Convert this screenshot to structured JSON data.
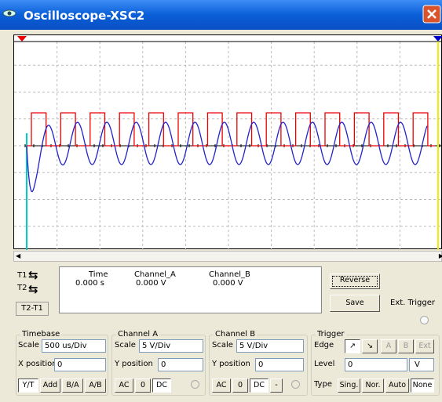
{
  "window": {
    "title": "Oscilloscope-XSC2"
  },
  "cursors": {
    "t1": "T1",
    "t2": "T2",
    "diff": "T2-T1"
  },
  "readout": {
    "headers": [
      "Time",
      "Channel_A",
      "Channel_B"
    ],
    "values": [
      "0.000 s",
      "0.000 V",
      "0.000 V"
    ]
  },
  "buttons": {
    "reverse": "Reverse",
    "save": "Save",
    "ext_trigger": "Ext. Trigger"
  },
  "timebase": {
    "label": "Timebase",
    "scale_label": "Scale",
    "scale": "500 us/Div",
    "position_label": "X position",
    "position": "0",
    "modes": [
      "Y/T",
      "Add",
      "B/A",
      "A/B"
    ]
  },
  "channel_a": {
    "label": "Channel A",
    "scale_label": "Scale",
    "scale": "5 V/Div",
    "position_label": "Y position",
    "position": "0",
    "coupling": [
      "AC",
      "0",
      "DC"
    ]
  },
  "channel_b": {
    "label": "Channel B",
    "scale_label": "Scale",
    "scale": "5 V/Div",
    "position_label": "Y position",
    "position": "0",
    "coupling": [
      "AC",
      "0",
      "DC",
      "-"
    ]
  },
  "trigger": {
    "label": "Trigger",
    "edge_label": "Edge",
    "sources": [
      "A",
      "B",
      "Ext"
    ],
    "level_label": "Level",
    "level": "0",
    "level_unit": "V",
    "type_label": "Type",
    "types": [
      "Sing.",
      "Nor.",
      "Auto",
      "None"
    ]
  }
}
